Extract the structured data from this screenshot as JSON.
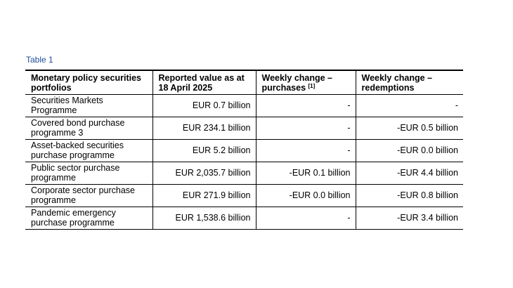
{
  "caption": "Table 1",
  "header": {
    "col1": "Monetary policy securities portfolios",
    "col2": "Reported value as at 18 April 2025",
    "col3": "Weekly change – purchases",
    "col3_footnote": "[1]",
    "col4": "Weekly change – redemptions"
  },
  "rows": [
    {
      "name": "Securities Markets Programme",
      "value": "EUR 0.7 billion",
      "purchases": "-",
      "redemptions": "-"
    },
    {
      "name": "Covered bond purchase programme 3",
      "value": "EUR 234.1 billion",
      "purchases": "-",
      "redemptions": "-EUR 0.5 billion"
    },
    {
      "name": "Asset-backed securities purchase programme",
      "value": "EUR 5.2 billion",
      "purchases": "-",
      "redemptions": "-EUR 0.0 billion"
    },
    {
      "name": "Public sector purchase programme",
      "value": "EUR 2,035.7 billion",
      "purchases": "-EUR 0.1 billion",
      "redemptions": "-EUR 4.4 billion"
    },
    {
      "name": "Corporate sector purchase programme",
      "value": "EUR 271.9 billion",
      "purchases": "-EUR 0.0 billion",
      "redemptions": "-EUR 0.8 billion"
    },
    {
      "name": "Pandemic emergency purchase programme",
      "value": "EUR 1,538.6 billion",
      "purchases": "-",
      "redemptions": "-EUR 3.4 billion"
    }
  ]
}
